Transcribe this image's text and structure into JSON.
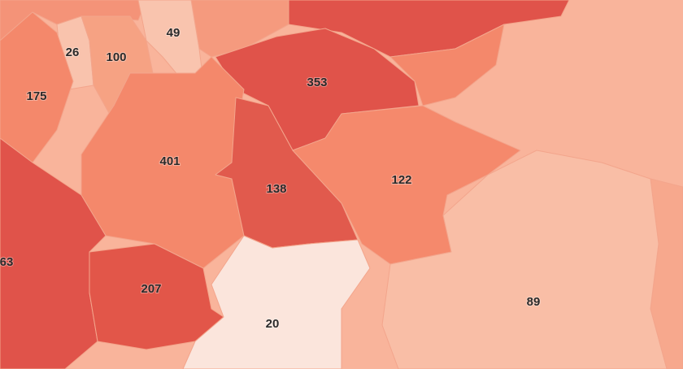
{
  "regions": [
    {
      "value": 26,
      "color": "#f9c3ad"
    },
    {
      "value": 100,
      "color": "#f6a283"
    },
    {
      "value": 49,
      "color": "#f9c4ae"
    },
    {
      "value": 175,
      "color": "#f4886b"
    },
    {
      "value": 353,
      "color": "#e0534a"
    },
    {
      "value": 401,
      "color": "#f4886b"
    },
    {
      "value": 138,
      "color": "#e15a4d"
    },
    {
      "value": 122,
      "color": "#f5896c"
    },
    {
      "value": 63,
      "color": "#e0534a"
    },
    {
      "value": 207,
      "color": "#e25649"
    },
    {
      "value": 20,
      "color": "#fbe5dc"
    },
    {
      "value": 89,
      "color": "#f9bea6"
    }
  ]
}
